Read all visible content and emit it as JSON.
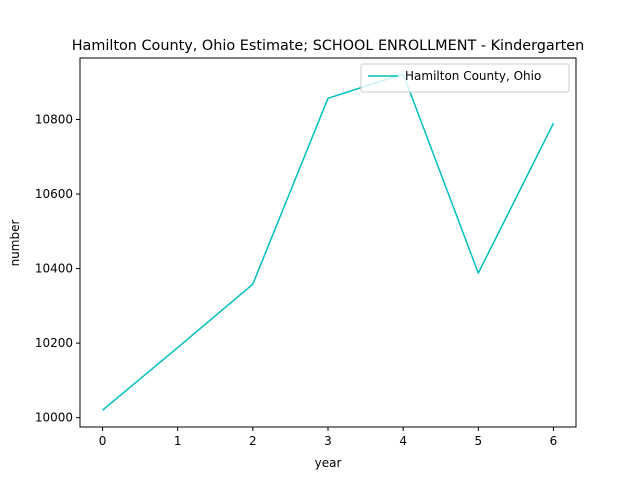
{
  "chart_data": {
    "type": "line",
    "title": "Hamilton County, Ohio Estimate; SCHOOL ENROLLMENT - Kindergarten",
    "xlabel": "year",
    "ylabel": "number",
    "x": [
      0,
      1,
      2,
      3,
      4,
      5,
      6
    ],
    "series": [
      {
        "name": "Hamilton County, Ohio",
        "color": "#00bfbf",
        "values": [
          10020,
          10188,
          10358,
          10857,
          10922,
          10388,
          10790
        ]
      }
    ],
    "xlim": [
      -0.3,
      6.3
    ],
    "ylim": [
      9975,
      10965
    ],
    "xticks": [
      0,
      1,
      2,
      3,
      4,
      5,
      6
    ],
    "yticks": [
      10000,
      10200,
      10400,
      10600,
      10800
    ],
    "grid": false,
    "legend_placement": "upper right"
  }
}
